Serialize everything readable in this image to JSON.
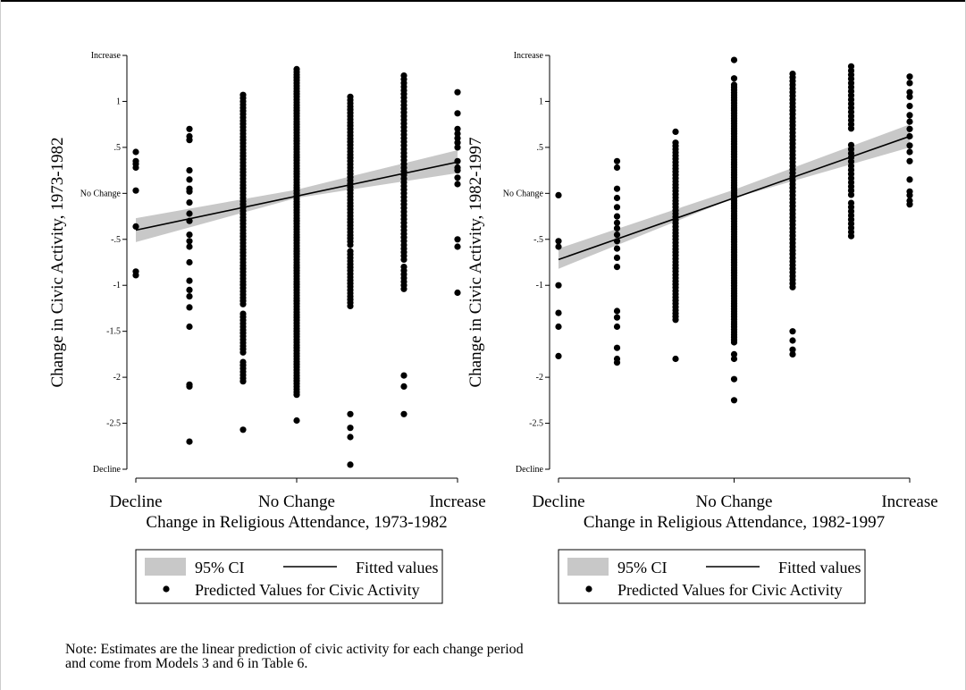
{
  "colors": {
    "ci_band": "#c8c8c8",
    "fit_line": "#000000",
    "points": "#000000",
    "axis": "#000000"
  },
  "legend_labels": {
    "ci": "95% CI",
    "fitted": "Fitted values",
    "points": "Predicted Values for Civic Activity"
  },
  "note": {
    "line1": "Note: Estimates are the linear prediction of civic activity for each change period",
    "line2": "and come from Models 3 and 6 in Table 6."
  },
  "chart_data": [
    {
      "type": "scatter",
      "xlabel": "Change in Religious Attendance, 1973-1982",
      "ylabel": "Change in Civic Activity, 1973-1982",
      "xlim": [
        -3,
        3
      ],
      "ylim": [
        -3,
        1.5
      ],
      "x_ticks": [
        {
          "v": -3,
          "label": "Decline"
        },
        {
          "v": 0,
          "label": "No Change"
        },
        {
          "v": 3,
          "label": "Increase"
        }
      ],
      "y_ticks": [
        {
          "v": 1.5,
          "label": "Increase"
        },
        {
          "v": 1,
          "label": "1"
        },
        {
          "v": 0.5,
          "label": ".5"
        },
        {
          "v": 0,
          "label": "No Change"
        },
        {
          "v": -0.5,
          "label": "-.5"
        },
        {
          "v": -1,
          "label": "-1"
        },
        {
          "v": -1.5,
          "label": "-1.5"
        },
        {
          "v": -2,
          "label": "-2"
        },
        {
          "v": -2.5,
          "label": "-2.5"
        },
        {
          "v": -3,
          "label": "Decline"
        }
      ],
      "fit": {
        "x": [
          -3,
          3
        ],
        "y": [
          -0.4,
          0.34
        ]
      },
      "ci": {
        "x": [
          -3,
          0,
          3
        ],
        "lower": [
          -0.53,
          -0.05,
          0.22
        ],
        "upper": [
          -0.27,
          0.04,
          0.47
        ]
      },
      "columns": [
        {
          "x": -3,
          "points": [
            0.45,
            0.35,
            0.32,
            0.28,
            0.03,
            -0.36,
            -0.85,
            -0.89
          ]
        },
        {
          "x": -2,
          "points": [
            0.7,
            0.62,
            0.58,
            0.25,
            0.15,
            0.05,
            0.02,
            -0.1,
            -0.22,
            -0.3,
            -0.45,
            -0.52,
            -0.58,
            -0.75,
            -0.95,
            -1.05,
            -1.12,
            -1.24,
            -1.45,
            -2.08,
            -2.1,
            -2.7
          ]
        },
        {
          "x": -1,
          "type": "dense",
          "from": -2.05,
          "to": 1.07,
          "step": 0.035,
          "gaps": [
            [
              -1.22,
              -1.28
            ],
            [
              -1.75,
              -1.8
            ]
          ],
          "extra": [
            -2.57
          ]
        },
        {
          "x": 0,
          "type": "dense",
          "from": -2.2,
          "to": 1.35,
          "step": 0.03,
          "gaps": [],
          "extra": [
            -2.47
          ]
        },
        {
          "x": 1,
          "type": "dense",
          "from": -1.25,
          "to": 1.05,
          "step": 0.035,
          "gaps": [
            [
              -0.58,
              -0.62
            ]
          ],
          "extra": [
            -2.4,
            -2.55,
            -2.65,
            -2.95
          ]
        },
        {
          "x": 2,
          "type": "dense",
          "from": -1.05,
          "to": 1.28,
          "step": 0.04,
          "gaps": [
            [
              -0.75,
              -0.8
            ]
          ],
          "extra": [
            -1.98,
            -2.1,
            -2.4
          ]
        },
        {
          "x": 3,
          "points": [
            1.1,
            0.87,
            0.7,
            0.65,
            0.6,
            0.55,
            0.5,
            0.35,
            0.28,
            0.25,
            0.17,
            0.1,
            -0.5,
            -0.58,
            -1.08
          ]
        }
      ]
    },
    {
      "type": "scatter",
      "xlabel": "Change in Religious Attendance, 1982-1997",
      "ylabel": "Change in Civic Activity, 1982-1997",
      "xlim": [
        -3,
        3
      ],
      "ylim": [
        -3,
        1.5
      ],
      "x_ticks": [
        {
          "v": -3,
          "label": "Decline"
        },
        {
          "v": 0,
          "label": "No Change"
        },
        {
          "v": 3,
          "label": "Increase"
        }
      ],
      "y_ticks": [
        {
          "v": 1.5,
          "label": "Increase"
        },
        {
          "v": 1,
          "label": "1"
        },
        {
          "v": 0.5,
          "label": ".5"
        },
        {
          "v": 0,
          "label": "No Change"
        },
        {
          "v": -0.5,
          "label": "-.5"
        },
        {
          "v": -1,
          "label": "-1"
        },
        {
          "v": -2,
          "label": "-2"
        },
        {
          "v": -2.5,
          "label": "-2.5"
        },
        {
          "v": -3,
          "label": "Decline"
        }
      ],
      "fit": {
        "x": [
          -3,
          3
        ],
        "y": [
          -0.72,
          0.62
        ]
      },
      "ci": {
        "x": [
          -3,
          0,
          3
        ],
        "lower": [
          -0.82,
          -0.05,
          0.5
        ],
        "upper": [
          -0.6,
          0.04,
          0.75
        ]
      },
      "columns": [
        {
          "x": -3,
          "points": [
            -0.02,
            -0.52,
            -0.58,
            -1.0,
            -1.3,
            -1.45,
            -1.77
          ]
        },
        {
          "x": -2,
          "points": [
            0.35,
            0.28,
            0.05,
            -0.05,
            -0.15,
            -0.25,
            -0.32,
            -0.38,
            -0.45,
            -0.52,
            -0.6,
            -0.7,
            -0.8,
            -1.28,
            -1.35,
            -1.45,
            -1.68,
            -1.8,
            -1.84
          ]
        },
        {
          "x": -1,
          "type": "dense",
          "from": -1.38,
          "to": 0.55,
          "step": 0.035,
          "gaps": [],
          "extra": [
            0.67,
            -1.8
          ]
        },
        {
          "x": 0,
          "type": "dense",
          "from": -1.62,
          "to": 1.18,
          "step": 0.028,
          "gaps": [],
          "extra": [
            1.25,
            1.45,
            -1.75,
            -1.8,
            -2.02,
            -2.25
          ]
        },
        {
          "x": 1,
          "type": "dense",
          "from": -1.05,
          "to": 1.3,
          "step": 0.04,
          "gaps": [
            [
              -0.35,
              -0.38
            ]
          ],
          "extra": [
            -1.5,
            -1.6,
            -1.7,
            -1.75
          ]
        },
        {
          "x": 2,
          "type": "dense",
          "from": -0.48,
          "to": 1.38,
          "step": 0.045,
          "gaps": [
            [
              0.55,
              0.68
            ],
            [
              -0.05,
              -0.1
            ]
          ],
          "extra": []
        },
        {
          "x": 3,
          "points": [
            1.27,
            1.2,
            1.1,
            1.05,
            0.95,
            0.85,
            0.78,
            0.7,
            0.62,
            0.52,
            0.45,
            0.35,
            0.15,
            0.02,
            -0.02,
            -0.08,
            -0.12
          ]
        }
      ]
    }
  ]
}
